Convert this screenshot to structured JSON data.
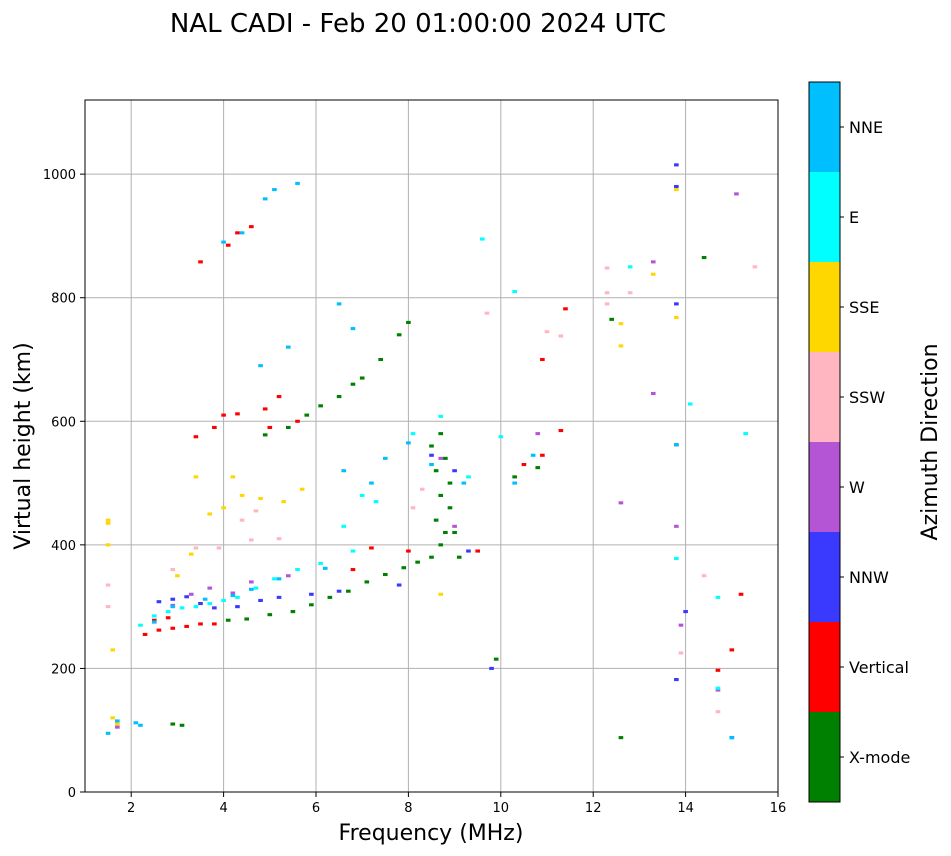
{
  "chart_data": {
    "type": "scatter",
    "title": "NAL CADI - Feb 20 01:00:00 2024 UTC",
    "xlabel": "Frequency (MHz)",
    "ylabel": "Virtual height (km)",
    "xlim": [
      1,
      16
    ],
    "ylim": [
      0,
      1120
    ],
    "xticks": [
      2,
      4,
      6,
      8,
      10,
      12,
      14,
      16
    ],
    "yticks": [
      0,
      200,
      400,
      600,
      800,
      1000
    ],
    "grid": true,
    "colorbar": {
      "label": "Azimuth Direction",
      "categories": [
        {
          "name": "X-mode",
          "color": "#008000"
        },
        {
          "name": "Vertical",
          "color": "#ff0000"
        },
        {
          "name": "NNW",
          "color": "#3a3aff"
        },
        {
          "name": "W",
          "color": "#b455d6"
        },
        {
          "name": "SSW",
          "color": "#ffb6c1"
        },
        {
          "name": "SSE",
          "color": "#ffd700"
        },
        {
          "name": "E",
          "color": "#00ffff"
        },
        {
          "name": "NNE",
          "color": "#00bfff"
        }
      ]
    },
    "series": [
      {
        "name": "X-mode",
        "points": [
          [
            2.9,
            110
          ],
          [
            3.1,
            108
          ],
          [
            4.1,
            278
          ],
          [
            4.5,
            280
          ],
          [
            5.0,
            287
          ],
          [
            5.5,
            292
          ],
          [
            5.9,
            303
          ],
          [
            6.3,
            315
          ],
          [
            6.7,
            325
          ],
          [
            7.1,
            340
          ],
          [
            7.5,
            352
          ],
          [
            7.9,
            363
          ],
          [
            8.2,
            372
          ],
          [
            8.5,
            380
          ],
          [
            8.7,
            400
          ],
          [
            8.8,
            420
          ],
          [
            8.6,
            440
          ],
          [
            8.9,
            460
          ],
          [
            8.7,
            480
          ],
          [
            8.9,
            500
          ],
          [
            8.6,
            520
          ],
          [
            8.8,
            540
          ],
          [
            8.5,
            560
          ],
          [
            8.7,
            580
          ],
          [
            9.0,
            420
          ],
          [
            9.1,
            380
          ],
          [
            4.9,
            578
          ],
          [
            5.4,
            590
          ],
          [
            5.8,
            610
          ],
          [
            6.1,
            625
          ],
          [
            6.5,
            640
          ],
          [
            6.8,
            660
          ],
          [
            7.0,
            670
          ],
          [
            7.4,
            700
          ],
          [
            7.8,
            740
          ],
          [
            8.0,
            760
          ],
          [
            9.9,
            215
          ],
          [
            12.4,
            765
          ],
          [
            12.6,
            88
          ],
          [
            14.4,
            865
          ],
          [
            10.3,
            510
          ],
          [
            10.8,
            525
          ]
        ]
      },
      {
        "name": "Vertical",
        "points": [
          [
            2.3,
            255
          ],
          [
            2.6,
            262
          ],
          [
            2.9,
            265
          ],
          [
            3.2,
            268
          ],
          [
            3.5,
            272
          ],
          [
            3.8,
            272
          ],
          [
            2.5,
            278
          ],
          [
            2.8,
            282
          ],
          [
            4.0,
            610
          ],
          [
            4.3,
            612
          ],
          [
            3.8,
            590
          ],
          [
            3.4,
            575
          ],
          [
            5.0,
            590
          ],
          [
            5.6,
            600
          ],
          [
            4.1,
            885
          ],
          [
            4.3,
            905
          ],
          [
            4.6,
            915
          ],
          [
            3.5,
            858
          ],
          [
            10.5,
            530
          ],
          [
            10.9,
            545
          ],
          [
            11.3,
            585
          ],
          [
            10.9,
            700
          ],
          [
            11.4,
            782
          ],
          [
            15.2,
            320
          ],
          [
            15.0,
            230
          ],
          [
            14.7,
            197
          ],
          [
            9.5,
            390
          ],
          [
            8.0,
            390
          ],
          [
            7.2,
            395
          ],
          [
            6.8,
            360
          ],
          [
            4.9,
            620
          ],
          [
            5.2,
            640
          ]
        ]
      },
      {
        "name": "NNW",
        "points": [
          [
            2.6,
            308
          ],
          [
            2.9,
            312
          ],
          [
            3.2,
            316
          ],
          [
            3.5,
            305
          ],
          [
            3.8,
            298
          ],
          [
            4.3,
            300
          ],
          [
            4.8,
            310
          ],
          [
            5.2,
            315
          ],
          [
            5.9,
            320
          ],
          [
            6.5,
            325
          ],
          [
            7.8,
            335
          ],
          [
            8.5,
            545
          ],
          [
            9.0,
            520
          ],
          [
            13.8,
            1015
          ],
          [
            13.8,
            980
          ],
          [
            13.8,
            790
          ],
          [
            13.8,
            562
          ],
          [
            14.0,
            292
          ],
          [
            13.8,
            182
          ],
          [
            15.0,
            88
          ],
          [
            9.8,
            200
          ],
          [
            9.3,
            390
          ]
        ]
      },
      {
        "name": "W",
        "points": [
          [
            2.9,
            302
          ],
          [
            3.3,
            320
          ],
          [
            3.7,
            330
          ],
          [
            4.2,
            322
          ],
          [
            4.6,
            340
          ],
          [
            5.4,
            350
          ],
          [
            8.7,
            540
          ],
          [
            9.0,
            430
          ],
          [
            15.1,
            968
          ],
          [
            13.3,
            858
          ],
          [
            13.3,
            645
          ],
          [
            12.6,
            468
          ],
          [
            13.8,
            430
          ],
          [
            13.9,
            270
          ],
          [
            14.7,
            165
          ],
          [
            10.8,
            580
          ],
          [
            1.7,
            105
          ]
        ]
      },
      {
        "name": "SSW",
        "points": [
          [
            1.5,
            300
          ],
          [
            1.5,
            335
          ],
          [
            2.9,
            360
          ],
          [
            3.4,
            395
          ],
          [
            3.9,
            395
          ],
          [
            4.6,
            408
          ],
          [
            5.2,
            410
          ],
          [
            4.4,
            440
          ],
          [
            4.7,
            455
          ],
          [
            8.1,
            460
          ],
          [
            8.3,
            490
          ],
          [
            9.7,
            775
          ],
          [
            12.3,
            848
          ],
          [
            12.3,
            808
          ],
          [
            12.3,
            790
          ],
          [
            12.8,
            808
          ],
          [
            11.0,
            745
          ],
          [
            11.3,
            738
          ],
          [
            14.4,
            350
          ],
          [
            14.7,
            130
          ],
          [
            13.9,
            225
          ],
          [
            15.5,
            850
          ]
        ]
      },
      {
        "name": "SSE",
        "points": [
          [
            1.5,
            400
          ],
          [
            1.5,
            440
          ],
          [
            1.5,
            435
          ],
          [
            1.6,
            230
          ],
          [
            1.6,
            120
          ],
          [
            1.7,
            110
          ],
          [
            3.0,
            350
          ],
          [
            3.3,
            385
          ],
          [
            3.7,
            450
          ],
          [
            4.0,
            460
          ],
          [
            4.4,
            480
          ],
          [
            4.8,
            475
          ],
          [
            5.3,
            470
          ],
          [
            5.7,
            490
          ],
          [
            3.4,
            510
          ],
          [
            4.2,
            510
          ],
          [
            12.6,
            758
          ],
          [
            12.6,
            722
          ],
          [
            13.3,
            838
          ],
          [
            13.8,
            975
          ],
          [
            13.8,
            768
          ],
          [
            8.7,
            320
          ]
        ]
      },
      {
        "name": "E",
        "points": [
          [
            2.2,
            270
          ],
          [
            2.5,
            285
          ],
          [
            2.8,
            292
          ],
          [
            3.1,
            298
          ],
          [
            3.4,
            300
          ],
          [
            3.7,
            305
          ],
          [
            4.0,
            310
          ],
          [
            4.3,
            315
          ],
          [
            4.7,
            330
          ],
          [
            5.1,
            345
          ],
          [
            5.6,
            360
          ],
          [
            6.1,
            370
          ],
          [
            6.8,
            390
          ],
          [
            7.3,
            470
          ],
          [
            8.1,
            580
          ],
          [
            8.7,
            608
          ],
          [
            9.3,
            510
          ],
          [
            10.0,
            575
          ],
          [
            10.3,
            810
          ],
          [
            12.8,
            850
          ],
          [
            14.1,
            628
          ],
          [
            15.3,
            580
          ],
          [
            13.8,
            378
          ],
          [
            14.7,
            315
          ],
          [
            14.7,
            168
          ],
          [
            9.6,
            895
          ],
          [
            6.6,
            430
          ],
          [
            7.0,
            480
          ]
        ]
      },
      {
        "name": "NNE",
        "points": [
          [
            1.5,
            95
          ],
          [
            1.7,
            115
          ],
          [
            2.1,
            112
          ],
          [
            2.2,
            108
          ],
          [
            2.5,
            275
          ],
          [
            2.9,
            300
          ],
          [
            3.6,
            312
          ],
          [
            4.2,
            318
          ],
          [
            4.6,
            328
          ],
          [
            5.2,
            345
          ],
          [
            6.2,
            362
          ],
          [
            6.6,
            520
          ],
          [
            7.2,
            500
          ],
          [
            7.5,
            540
          ],
          [
            8.0,
            565
          ],
          [
            8.5,
            530
          ],
          [
            9.2,
            500
          ],
          [
            10.3,
            500
          ],
          [
            10.7,
            545
          ],
          [
            4.0,
            890
          ],
          [
            4.4,
            905
          ],
          [
            4.9,
            960
          ],
          [
            5.1,
            975
          ],
          [
            5.6,
            985
          ],
          [
            4.8,
            690
          ],
          [
            5.4,
            720
          ],
          [
            6.5,
            790
          ],
          [
            6.8,
            750
          ],
          [
            15.0,
            88
          ],
          [
            13.8,
            562
          ]
        ]
      }
    ]
  }
}
